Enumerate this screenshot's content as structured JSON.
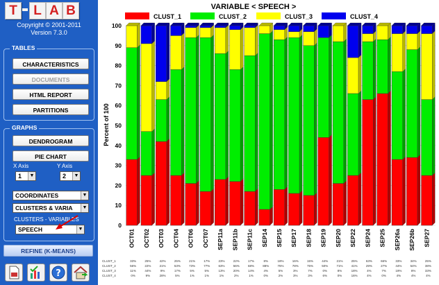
{
  "app": {
    "logo_letters": [
      "T",
      "L",
      "A",
      "B"
    ],
    "copyright": "Copyright © 2001-2011",
    "version": "Version 7.3.0"
  },
  "tables": {
    "title": "TABLES",
    "buttons": [
      "CHARACTERISTICS",
      "DOCUMENTS",
      "HTML REPORT",
      "PARTITIONS"
    ]
  },
  "graphs": {
    "title": "GRAPHS",
    "buttons": [
      "DENDROGRAM",
      "PIE CHART"
    ],
    "x_axis_label": "X Axis",
    "y_axis_label": "Y Axis",
    "x_axis_value": "1",
    "y_axis_value": "2",
    "select_type": "COORDINATES",
    "select_source": "CLUSTERS & VARIA",
    "clusters_variables_label": "CLUSTERS - VARIABLES",
    "select_variable": "SPEECH"
  },
  "refine_label": "REFINE (K-MEANS)",
  "toolbar_icons": [
    "save-icon",
    "chart-check-icon",
    "help-icon",
    "home-icon"
  ],
  "colors": {
    "clust_1": "#ff0000",
    "clust_2": "#00ee00",
    "clust_3": "#ffff00",
    "clust_4": "#0000ee"
  },
  "chart_data": {
    "type": "bar",
    "stacked": true,
    "title": "VARIABLE < SPEECH >",
    "ylabel": "Percent of 100",
    "ylim": [
      0,
      100
    ],
    "yticks": [
      0,
      10,
      20,
      30,
      40,
      50,
      60,
      70,
      80,
      90,
      100
    ],
    "legend_position": "top",
    "categories": [
      "OCT01",
      "OCT02",
      "OCT03",
      "OCT04",
      "OCT06",
      "OCT07",
      "SEP11a",
      "SEP11b",
      "SEP11c",
      "SEP14",
      "SEP15",
      "SEP17",
      "SEP18",
      "SEP19",
      "SEP20",
      "SEP22",
      "SEP24",
      "SEP25",
      "SEP26a",
      "SEP26b",
      "SEP27"
    ],
    "series": [
      {
        "name": "CLUST_1",
        "values": [
          33,
          25,
          42,
          25,
          21,
          17,
          23,
          22,
          17,
          8,
          18,
          16,
          15,
          44,
          21,
          25,
          63,
          66,
          33,
          34,
          25
        ]
      },
      {
        "name": "CLUST_2",
        "values": [
          56,
          22,
          21,
          53,
          73,
          77,
          63,
          56,
          68,
          88,
          75,
          78,
          75,
          50,
          71,
          41,
          29,
          27,
          44,
          54,
          38
        ]
      },
      {
        "name": "CLUST_3",
        "values": [
          11,
          44,
          9,
          17,
          5,
          5,
          13,
          20,
          14,
          4,
          5,
          3,
          7,
          0,
          8,
          18,
          4,
          7,
          19,
          8,
          33
        ]
      },
      {
        "name": "CLUST_4",
        "values": [
          0,
          9,
          28,
          5,
          1,
          1,
          1,
          2,
          1,
          0,
          2,
          3,
          3,
          6,
          0,
          16,
          4,
          0,
          4,
          4,
          4
        ]
      }
    ]
  }
}
